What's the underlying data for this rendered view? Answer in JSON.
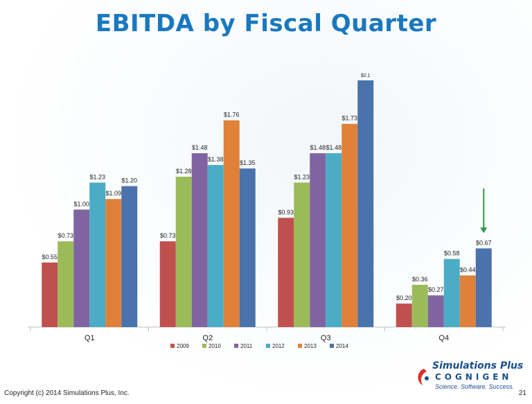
{
  "page_title": "EBITDA by Fiscal Quarter",
  "footer": {
    "copyright": "Copyright (c) 2014 Simulations Plus, Inc.",
    "page_number": "21"
  },
  "logo": {
    "line1": "Simulations Plus",
    "line2": "COGNIGEN",
    "tagline": "Science. Software. Success."
  },
  "chart_data": {
    "type": "bar",
    "title": "EBITDA by Fiscal Quarter",
    "categories": [
      "Q1",
      "Q2",
      "Q3",
      "Q4"
    ],
    "series": [
      {
        "name": "2009",
        "color": "#c0504d",
        "values": [
          0.55,
          0.73,
          0.93,
          0.2
        ],
        "labels": [
          "$0.55",
          "$0.73",
          "$0.93",
          "$0.20"
        ]
      },
      {
        "name": "2010",
        "color": "#9bbb59",
        "values": [
          0.73,
          1.28,
          1.23,
          0.36
        ],
        "labels": [
          "$0.73",
          "$1.28",
          "$1.23",
          "$0.36"
        ]
      },
      {
        "name": "2011",
        "color": "#8064a2",
        "values": [
          1.0,
          1.48,
          1.48,
          0.27
        ],
        "labels": [
          "$1.00",
          "$1.48",
          "$1.48",
          "$0.27"
        ]
      },
      {
        "name": "2012",
        "color": "#4bacc6",
        "values": [
          1.23,
          1.38,
          1.48,
          0.58
        ],
        "labels": [
          "$1.23",
          "$1.38",
          "$1.48",
          "$0.58"
        ]
      },
      {
        "name": "2013",
        "color": "#e0813a",
        "values": [
          1.09,
          1.76,
          1.73,
          0.44
        ],
        "labels": [
          "$1.09",
          "$1.76",
          "$1.73",
          "$0.44"
        ]
      },
      {
        "name": "2014",
        "color": "#4a72ab",
        "values": [
          1.2,
          1.35,
          2.1,
          0.67
        ],
        "labels": [
          "$1.20",
          "$1.35",
          "$2.1",
          "$0.67"
        ]
      }
    ],
    "ylim": [
      0,
      2.1
    ],
    "legend_position": "bottom",
    "grid": false,
    "annotation": {
      "type": "arrow",
      "target_category": "Q4",
      "target_series": "2014",
      "color": "#2e9a47"
    }
  }
}
